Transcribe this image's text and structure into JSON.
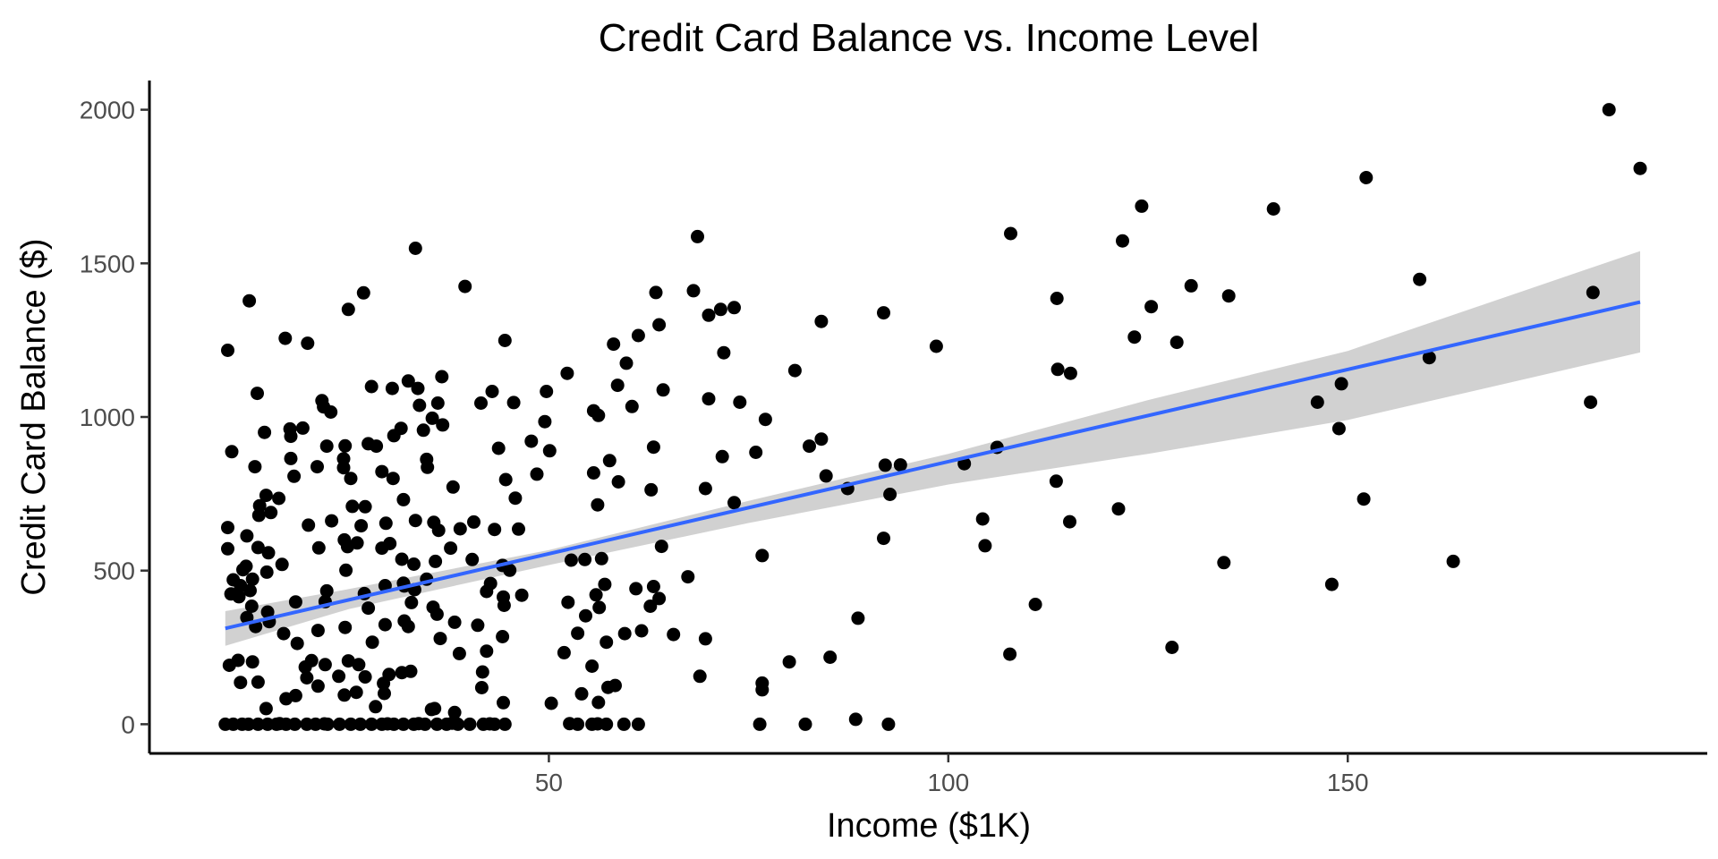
{
  "chart_data": {
    "type": "scatter",
    "title": "Credit Card Balance vs. Income Level",
    "xlabel": "Income ($1K)",
    "ylabel": "Credit Card Balance ($)",
    "xlim": [
      0,
      195
    ],
    "ylim": [
      -95,
      2095
    ],
    "x_ticks": [
      50,
      100,
      150
    ],
    "y_ticks": [
      0,
      500,
      1000,
      1500,
      2000
    ],
    "grid": false,
    "legend": "none",
    "colors": {
      "points": "#000000",
      "trend": "#3366ff",
      "band": "#cccccc",
      "axis": "#000000",
      "ticks": "#4d4d4d"
    },
    "points": [
      [
        182.7,
        2000
      ],
      [
        186.6,
        1809
      ],
      [
        152.3,
        1779
      ],
      [
        124.2,
        1686
      ],
      [
        140.7,
        1677
      ],
      [
        68.6,
        1587
      ],
      [
        107.8,
        1597
      ],
      [
        121.8,
        1573
      ],
      [
        33.3,
        1549
      ],
      [
        159,
        1448
      ],
      [
        130.4,
        1427
      ],
      [
        39.5,
        1425
      ],
      [
        68.1,
        1411
      ],
      [
        26.8,
        1404
      ],
      [
        180.7,
        1405
      ],
      [
        63.4,
        1405
      ],
      [
        135.1,
        1394
      ],
      [
        113.6,
        1386
      ],
      [
        12.5,
        1378
      ],
      [
        73.2,
        1356
      ],
      [
        71.5,
        1350
      ],
      [
        125.4,
        1359
      ],
      [
        24.9,
        1350
      ],
      [
        70,
        1331
      ],
      [
        91.9,
        1339
      ],
      [
        84.1,
        1311
      ],
      [
        63.8,
        1300
      ],
      [
        61.2,
        1265
      ],
      [
        123.3,
        1260
      ],
      [
        128.6,
        1243
      ],
      [
        17,
        1256
      ],
      [
        44.5,
        1249
      ],
      [
        19.8,
        1240
      ],
      [
        58.1,
        1237
      ],
      [
        98.5,
        1230
      ],
      [
        71.9,
        1209
      ],
      [
        9.8,
        1217
      ],
      [
        160.2,
        1193
      ],
      [
        59.7,
        1175
      ],
      [
        113.7,
        1155
      ],
      [
        80.8,
        1151
      ],
      [
        115.3,
        1142
      ],
      [
        52.3,
        1142
      ],
      [
        36.6,
        1131
      ],
      [
        32.4,
        1117
      ],
      [
        27.8,
        1099
      ],
      [
        149.2,
        1108
      ],
      [
        33.6,
        1093
      ],
      [
        30.4,
        1093
      ],
      [
        58.6,
        1103
      ],
      [
        42.9,
        1083
      ],
      [
        49.7,
        1083
      ],
      [
        64.3,
        1088
      ],
      [
        13.5,
        1077
      ],
      [
        45.6,
        1047
      ],
      [
        21.6,
        1053
      ],
      [
        41.5,
        1045
      ],
      [
        36.1,
        1045
      ],
      [
        70,
        1059
      ],
      [
        73.9,
        1048
      ],
      [
        146.2,
        1048
      ],
      [
        180.4,
        1048
      ],
      [
        55.6,
        1020
      ],
      [
        33.8,
        1038
      ],
      [
        21.8,
        1033
      ],
      [
        60.4,
        1034
      ],
      [
        56.2,
        1005
      ],
      [
        22.7,
        1016
      ],
      [
        35.4,
        996
      ],
      [
        77.1,
        992
      ],
      [
        14.4,
        950
      ],
      [
        17.6,
        961
      ],
      [
        19.2,
        964
      ],
      [
        36.7,
        974
      ],
      [
        31.5,
        963
      ],
      [
        49.5,
        985
      ],
      [
        17.7,
        937
      ],
      [
        30.6,
        939
      ],
      [
        34.3,
        957
      ],
      [
        148.9,
        962
      ],
      [
        84.1,
        928
      ],
      [
        27.4,
        913
      ],
      [
        47.8,
        921
      ],
      [
        82.6,
        905
      ],
      [
        22.2,
        905
      ],
      [
        24.5,
        906
      ],
      [
        28.4,
        905
      ],
      [
        106.1,
        901
      ],
      [
        43.7,
        898
      ],
      [
        63.1,
        902
      ],
      [
        75.9,
        885
      ],
      [
        10.3,
        887
      ],
      [
        50.1,
        890
      ],
      [
        17.7,
        865
      ],
      [
        24.3,
        864
      ],
      [
        71.7,
        871
      ],
      [
        34.7,
        862
      ],
      [
        57.6,
        858
      ],
      [
        102,
        848
      ],
      [
        94,
        844
      ],
      [
        92.1,
        843
      ],
      [
        13.2,
        838
      ],
      [
        21,
        838
      ],
      [
        24.3,
        835
      ],
      [
        34.8,
        836
      ],
      [
        29.1,
        822
      ],
      [
        55.6,
        818
      ],
      [
        48.5,
        814
      ],
      [
        30.5,
        800
      ],
      [
        84.7,
        808
      ],
      [
        25.2,
        800
      ],
      [
        44.6,
        796
      ],
      [
        18.1,
        807
      ],
      [
        58.7,
        789
      ],
      [
        113.5,
        791
      ],
      [
        62.8,
        763
      ],
      [
        69.6,
        767
      ],
      [
        87.4,
        767
      ],
      [
        38,
        772
      ],
      [
        14.6,
        745
      ],
      [
        16.2,
        735
      ],
      [
        31.8,
        731
      ],
      [
        56.1,
        714
      ],
      [
        13.8,
        711
      ],
      [
        27,
        708
      ],
      [
        92.7,
        748
      ],
      [
        15.2,
        689
      ],
      [
        22.8,
        662
      ],
      [
        13.7,
        680
      ],
      [
        45.8,
        736
      ],
      [
        25.4,
        709
      ],
      [
        29.6,
        654
      ],
      [
        33.3,
        663
      ],
      [
        35.6,
        657
      ],
      [
        43.2,
        634
      ],
      [
        40.6,
        658
      ],
      [
        36.2,
        631
      ],
      [
        19.9,
        648
      ],
      [
        26.5,
        646
      ],
      [
        38.9,
        636
      ],
      [
        73.2,
        721
      ],
      [
        46.2,
        635
      ],
      [
        121.3,
        701
      ],
      [
        104.3,
        668
      ],
      [
        115.2,
        659
      ],
      [
        152,
        733
      ],
      [
        9.8,
        640
      ],
      [
        12.2,
        613
      ],
      [
        24.4,
        600
      ],
      [
        26,
        590
      ],
      [
        30.1,
        588
      ],
      [
        13.6,
        575
      ],
      [
        9.8,
        571
      ],
      [
        14.9,
        558
      ],
      [
        21.2,
        574
      ],
      [
        24.8,
        578
      ],
      [
        29.1,
        573
      ],
      [
        37.7,
        573
      ],
      [
        104.6,
        581
      ],
      [
        91.9,
        605
      ],
      [
        64.1,
        579
      ],
      [
        40.4,
        536
      ],
      [
        44.2,
        517
      ],
      [
        16.6,
        520
      ],
      [
        35.8,
        530
      ],
      [
        52.8,
        534
      ],
      [
        54.5,
        536
      ],
      [
        56.6,
        539
      ],
      [
        12.1,
        514
      ],
      [
        31.6,
        537
      ],
      [
        76.7,
        549
      ],
      [
        33.1,
        521
      ],
      [
        45.1,
        501
      ],
      [
        11.7,
        503
      ],
      [
        14.7,
        495
      ],
      [
        24.6,
        501
      ],
      [
        29.5,
        451
      ],
      [
        31.8,
        459
      ],
      [
        34.7,
        472
      ],
      [
        10.5,
        470
      ],
      [
        12.9,
        472
      ],
      [
        11.4,
        451
      ],
      [
        42.7,
        458
      ],
      [
        60.9,
        441
      ],
      [
        57,
        455
      ],
      [
        63.1,
        448
      ],
      [
        67.4,
        480
      ],
      [
        148,
        455
      ],
      [
        134.5,
        526
      ],
      [
        163.2,
        530
      ],
      [
        10.2,
        424
      ],
      [
        12.6,
        435
      ],
      [
        11.2,
        415
      ],
      [
        22.2,
        434
      ],
      [
        26.9,
        425
      ],
      [
        31.9,
        450
      ],
      [
        33.2,
        438
      ],
      [
        42.2,
        432
      ],
      [
        44.3,
        414
      ],
      [
        46.6,
        420
      ],
      [
        55.9,
        421
      ],
      [
        63.8,
        409
      ],
      [
        52.4,
        397
      ],
      [
        56.3,
        380
      ],
      [
        62.7,
        384
      ],
      [
        32.8,
        396
      ],
      [
        22,
        399
      ],
      [
        18.3,
        398
      ],
      [
        27.4,
        378
      ],
      [
        35.5,
        381
      ],
      [
        14.8,
        365
      ],
      [
        12.8,
        384
      ],
      [
        44.4,
        387
      ],
      [
        54.6,
        353
      ],
      [
        110.9,
        390
      ],
      [
        88.7,
        345
      ],
      [
        12.2,
        347
      ],
      [
        15,
        334
      ],
      [
        29.5,
        324
      ],
      [
        31.9,
        336
      ],
      [
        36,
        358
      ],
      [
        38.2,
        332
      ],
      [
        41.1,
        322
      ],
      [
        32.4,
        318
      ],
      [
        61.6,
        304
      ],
      [
        59.5,
        295
      ],
      [
        65.6,
        292
      ],
      [
        53.6,
        296
      ],
      [
        36.4,
        279
      ],
      [
        44.2,
        285
      ],
      [
        13.3,
        318
      ],
      [
        16.8,
        295
      ],
      [
        21.1,
        305
      ],
      [
        24.5,
        315
      ],
      [
        18.5,
        263
      ],
      [
        27.9,
        267
      ],
      [
        42.2,
        238
      ],
      [
        51.9,
        233
      ],
      [
        57.2,
        267
      ],
      [
        69.6,
        278
      ],
      [
        128,
        250
      ],
      [
        38.8,
        230
      ],
      [
        85.2,
        218
      ],
      [
        107.7,
        228
      ],
      [
        80.1,
        203
      ],
      [
        10,
        192
      ],
      [
        12.9,
        203
      ],
      [
        11.1,
        208
      ],
      [
        20.3,
        207
      ],
      [
        22,
        194
      ],
      [
        24.9,
        206
      ],
      [
        26.2,
        194
      ],
      [
        31.6,
        168
      ],
      [
        32.7,
        172
      ],
      [
        19.5,
        186
      ],
      [
        41.7,
        170
      ],
      [
        55.4,
        189
      ],
      [
        68.9,
        156
      ],
      [
        76.7,
        134
      ],
      [
        76.7,
        112
      ],
      [
        23.7,
        156
      ],
      [
        27,
        154
      ],
      [
        30,
        162
      ],
      [
        29.3,
        133
      ],
      [
        21.1,
        124
      ],
      [
        19.7,
        151
      ],
      [
        11.4,
        136
      ],
      [
        13.6,
        137
      ],
      [
        41.6,
        119
      ],
      [
        57.4,
        120
      ],
      [
        58.3,
        126
      ],
      [
        29.4,
        100
      ],
      [
        17.1,
        83
      ],
      [
        18.3,
        93
      ],
      [
        24.4,
        95
      ],
      [
        25.9,
        104
      ],
      [
        44.3,
        70
      ],
      [
        50.3,
        68
      ],
      [
        54.1,
        99
      ],
      [
        56.2,
        71
      ],
      [
        14.6,
        51
      ],
      [
        28.3,
        57
      ],
      [
        35.3,
        48
      ],
      [
        35.7,
        51
      ],
      [
        38.2,
        38
      ],
      [
        88.4,
        16
      ],
      [
        9.5,
        0
      ],
      [
        10.5,
        0
      ],
      [
        11.6,
        0
      ],
      [
        12.4,
        0
      ],
      [
        13.6,
        0
      ],
      [
        14.8,
        0
      ],
      [
        15.9,
        0
      ],
      [
        17.1,
        0
      ],
      [
        18.2,
        0
      ],
      [
        19.7,
        0
      ],
      [
        20.8,
        0
      ],
      [
        22.3,
        0
      ],
      [
        23.8,
        0
      ],
      [
        25.2,
        0
      ],
      [
        26.4,
        0
      ],
      [
        27.8,
        0
      ],
      [
        29.1,
        0
      ],
      [
        30.6,
        0
      ],
      [
        31.8,
        0
      ],
      [
        33.1,
        0
      ],
      [
        34.5,
        0
      ],
      [
        36,
        0
      ],
      [
        37.2,
        0
      ],
      [
        38.6,
        0
      ],
      [
        40.1,
        0
      ],
      [
        41.8,
        0
      ],
      [
        43.2,
        0
      ],
      [
        44.5,
        0
      ],
      [
        53.6,
        0
      ],
      [
        55.4,
        0
      ],
      [
        57.2,
        0
      ],
      [
        59.4,
        0
      ],
      [
        61.2,
        0
      ],
      [
        76.4,
        0
      ],
      [
        82.1,
        0
      ],
      [
        92.5,
        0
      ],
      [
        16.3,
        2
      ],
      [
        21.9,
        1
      ],
      [
        29.8,
        1
      ],
      [
        33.7,
        2
      ],
      [
        37.9,
        3
      ],
      [
        42.6,
        1
      ],
      [
        52.6,
        2
      ],
      [
        56.1,
        1
      ]
    ],
    "trend_line": {
      "x": [
        9.5,
        186.6
      ],
      "y": [
        312,
        1374
      ]
    },
    "confidence_band": {
      "x": [
        9.5,
        25,
        50,
        75,
        100,
        125,
        150,
        186.6
      ],
      "lower": [
        255,
        375,
        518,
        655,
        780,
        880,
        990,
        1210
      ],
      "upper": [
        368,
        440,
        567,
        727,
        880,
        1055,
        1215,
        1540
      ]
    }
  }
}
